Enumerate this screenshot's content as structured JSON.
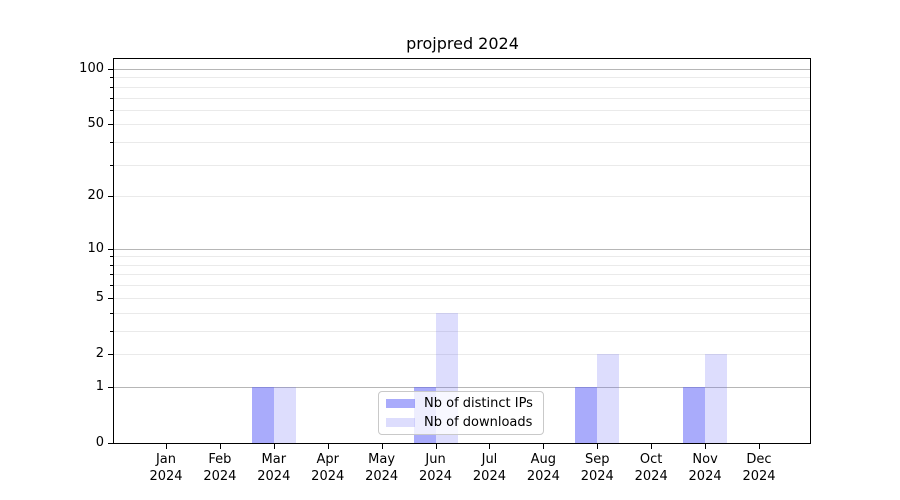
{
  "chart_data": {
    "type": "bar",
    "title": "projpred 2024",
    "categories": [
      "Jan",
      "Feb",
      "Mar",
      "Apr",
      "May",
      "Jun",
      "Jul",
      "Aug",
      "Sep",
      "Oct",
      "Nov",
      "Dec"
    ],
    "year_label": "2024",
    "series": [
      {
        "name": "Nb of distinct IPs",
        "values": [
          0,
          0,
          1,
          0,
          0,
          1,
          0,
          0,
          1,
          0,
          1,
          0
        ],
        "color": "rgba(98,102,247,0.55)"
      },
      {
        "name": "Nb of downloads",
        "values": [
          0,
          0,
          1,
          0,
          0,
          4,
          0,
          0,
          2,
          0,
          2,
          0
        ],
        "color": "rgba(98,102,247,0.22)"
      }
    ],
    "yscale": "log1p",
    "ylim": [
      0,
      100
    ],
    "y_tick_labels": [
      0,
      1,
      2,
      5,
      10,
      20,
      50,
      100
    ],
    "y_major_gridlines": [
      1,
      10,
      100
    ],
    "y_minor_gridlines": [
      2,
      3,
      4,
      5,
      6,
      7,
      8,
      9,
      20,
      30,
      40,
      50,
      60,
      70,
      80,
      90
    ],
    "grid": true,
    "legend_position": "lower center"
  },
  "colors": {
    "major_grid": "#b6b6b6",
    "minor_grid": "#eaeaea",
    "axis": "#000000",
    "background": "#ffffff"
  }
}
